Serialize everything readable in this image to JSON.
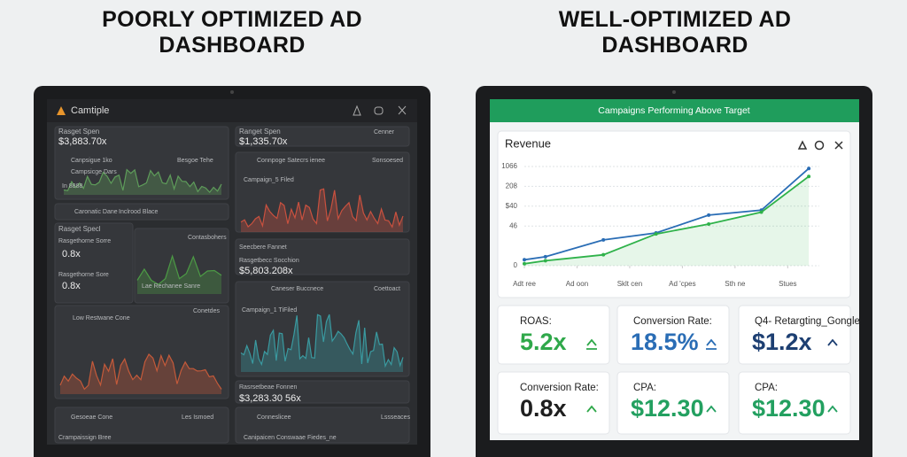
{
  "left": {
    "title": "POORLY OPTIMIZED AD DASHBOARD",
    "header": "Camtiple",
    "texts": [
      "Rasget Spen",
      "$3,883.70x",
      "Canpsigue 1ko",
      "Besgoe Tehe",
      "Campsicge Dars",
      "In 8888",
      "Caronatic Dane",
      "Inclrood Blace",
      "Rasget Specl",
      "Rasgethorne Sorre",
      "0.8x",
      "Rasgethorne Sore",
      "0.8x",
      "Contasbohers",
      "Lae Rechanee Sanre",
      "Low Restwane Cone",
      "Conetdes",
      "Gesoeae Cone",
      "Les Ismoed",
      "Crampaissign Bree",
      "Ranget Spen",
      "$1,335.70x",
      "Cenner",
      "Connpoge Satecrs ienee",
      "Sonsoesed",
      "Campaign_5 Filed",
      "Seecbere Fannet",
      "Rasgetbecc Socchion",
      "$5,803.208x",
      "Campaign_1 TiFiled",
      "Caneser Buccnece",
      "Coettoact",
      "Rasrsetbeae Fonnen",
      "$3,283.30 56x",
      "Conneslicee",
      "Lssseaces",
      "Canipaicen Conswaae Fiedes_ne"
    ]
  },
  "right": {
    "title": "WELL-OPTIMIZED AD DASHBOARD",
    "banner": "Campaigns Performing Above Target",
    "chart": {
      "type": "line",
      "title": "Revenue",
      "x": [
        0,
        0.4,
        1.5,
        2.5,
        3.5,
        4.5,
        5.4
      ],
      "xlim": [
        0,
        5.6
      ],
      "xticks": [
        {
          "value": 0,
          "label": "Adt ree"
        },
        {
          "value": 1,
          "label": "Ad oon"
        },
        {
          "value": 2,
          "label": "Sklt cen"
        },
        {
          "value": 3,
          "label": "Ad 'cpes"
        },
        {
          "value": 4,
          "label": "Sth ne"
        },
        {
          "value": 5,
          "label": "Stues"
        }
      ],
      "ylim": [
        0,
        5
      ],
      "yticks": [
        {
          "value": 0,
          "label": "0"
        },
        {
          "value": 2,
          "label": "46"
        },
        {
          "value": 3,
          "label": "$40"
        },
        {
          "value": 4,
          "label": "208"
        },
        {
          "value": 5,
          "label": "1066"
        }
      ],
      "series": [
        {
          "color": "#2a6db5",
          "values": [
            0.3,
            0.45,
            1.3,
            1.65,
            2.55,
            2.8,
            4.9
          ]
        },
        {
          "color": "#2fb24a",
          "values": [
            0.1,
            0.25,
            0.55,
            1.6,
            2.1,
            2.7,
            4.5
          ]
        }
      ]
    },
    "cards": [
      {
        "label": "ROAS:",
        "value": "5.2x",
        "color": "#2fa84a"
      },
      {
        "label": "Conversion Rate:",
        "value": "18.5%",
        "color": "#2a6db5"
      },
      {
        "label": "Q4- Retargting_Gongle",
        "value": "$1.2x",
        "color": "#1d3f72"
      },
      {
        "label": "Conversion Rate:",
        "value": "0.8x",
        "color": "#1f1f1f"
      },
      {
        "label": "CPA:",
        "value": "$12.30",
        "color": "#23a060"
      },
      {
        "label": "CPA:",
        "value": "$12.30",
        "color": "#23a060"
      }
    ]
  }
}
